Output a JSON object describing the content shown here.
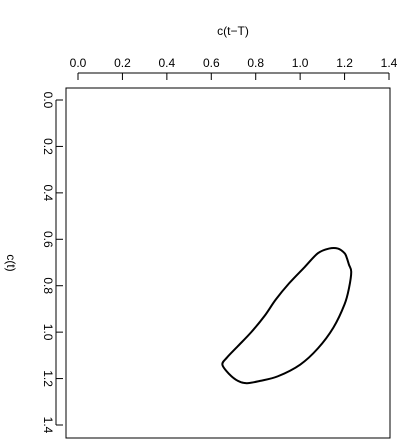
{
  "chart_data": {
    "type": "line",
    "title": "",
    "xlabel": "c(t−T)",
    "ylabel": "c(t)",
    "x_axis_position": "top",
    "y_axis_reversed": true,
    "y_tick_label_rotation": "rotated",
    "xlim": [
      0.0,
      1.4
    ],
    "ylim": [
      0.0,
      1.4
    ],
    "xticks": [
      "0.0",
      "0.2",
      "0.4",
      "0.6",
      "0.8",
      "1.0",
      "1.2",
      "1.4"
    ],
    "yticks": [
      "0.0",
      "0.2",
      "0.4",
      "0.6",
      "0.8",
      "1.0",
      "1.2",
      "1.4"
    ],
    "grid": false,
    "legend": "none",
    "line_color": "#000000",
    "series": [
      {
        "closed": true,
        "x": [
          0.65,
          0.67,
          0.72,
          0.78,
          0.84,
          0.89,
          0.95,
          1.02,
          1.08,
          1.13,
          1.17,
          1.2,
          1.21,
          1.22,
          1.23,
          1.22,
          1.2,
          1.15,
          1.08,
          1.0,
          0.9,
          0.82,
          0.76,
          0.72,
          0.68,
          0.65
        ],
        "y": [
          1.14,
          1.11,
          1.06,
          1.0,
          0.93,
          0.86,
          0.79,
          0.72,
          0.66,
          0.64,
          0.64,
          0.66,
          0.68,
          0.71,
          0.74,
          0.81,
          0.88,
          0.98,
          1.07,
          1.14,
          1.19,
          1.21,
          1.22,
          1.21,
          1.18,
          1.14
        ]
      }
    ]
  }
}
